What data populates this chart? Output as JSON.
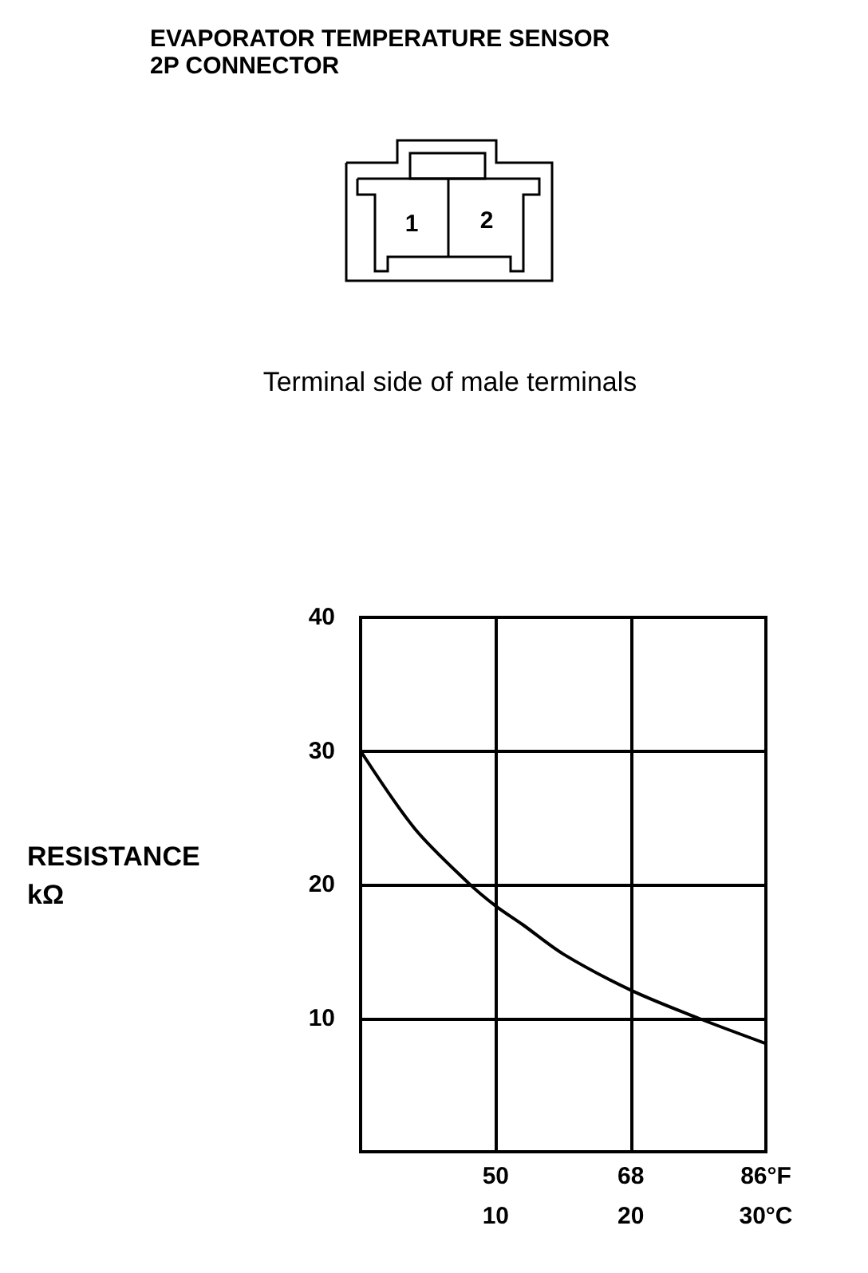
{
  "chart_data": {
    "type": "line",
    "title": "EVAPORATOR TEMPERATURE SENSOR",
    "subtitle": "2P CONNECTOR",
    "annotations": [
      "Terminal side of male terminals",
      "1",
      "2"
    ],
    "ylabel": "RESISTANCE\nkΩ",
    "x": [
      0,
      4,
      8,
      10,
      12,
      15,
      20,
      25,
      30
    ],
    "series": [
      {
        "color": "#000000",
        "values": [
          30,
          24.2,
          20.1,
          18.4,
          17,
          14.8,
          12.1,
          10,
          8.1
        ]
      }
    ],
    "xlim": [
      0,
      30
    ],
    "xticks": [
      10,
      20,
      {
        "value": 30,
        "label": "30°C"
      }
    ],
    "x2lim": [
      32,
      86
    ],
    "x2ticks": [
      50,
      68,
      {
        "value": 86,
        "label": "86°F"
      }
    ],
    "ylim": [
      0,
      40
    ],
    "yticks": [
      10,
      20,
      30,
      40
    ],
    "grid": true,
    "marker": "none",
    "line_style": "solid"
  }
}
